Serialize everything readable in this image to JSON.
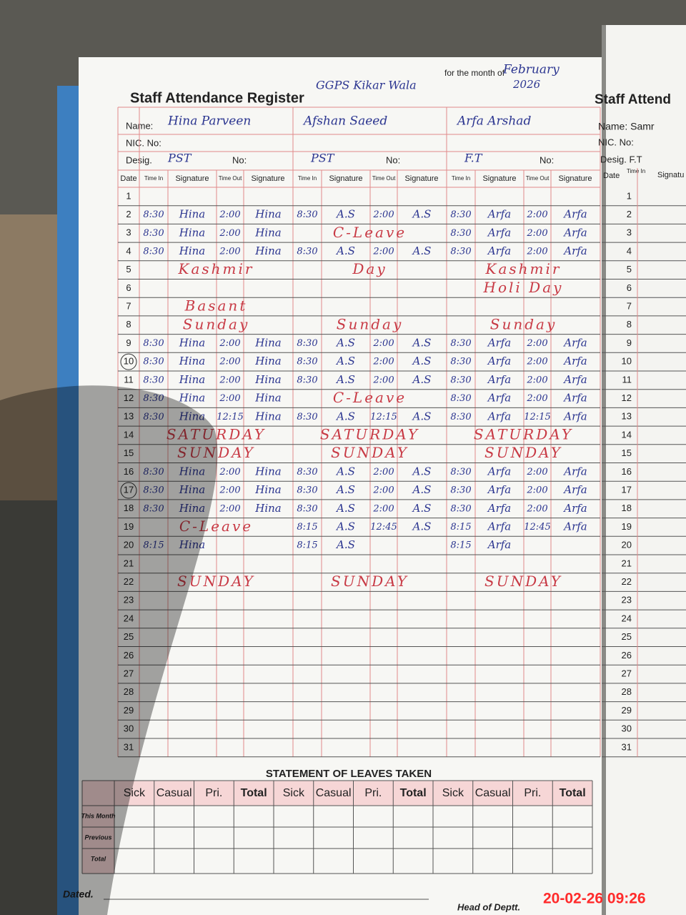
{
  "header": {
    "title": "Staff Attendance Register",
    "school": "GGPS Kikar Wala",
    "month_label": "for the month of",
    "month": "February",
    "year": "2026"
  },
  "labels": {
    "name": "Name:",
    "nic": "NIC. No:",
    "desig": "Desig.",
    "no": "No:",
    "date": "Date",
    "time_in": "Time In",
    "signature": "Signature",
    "time_out": "Time Out"
  },
  "staff": [
    {
      "name": "Hina Parveen",
      "desig": "PST"
    },
    {
      "name": "Afshan Saeed",
      "desig": "PST"
    },
    {
      "name": "Arfa Arshad",
      "desig": "F.T"
    }
  ],
  "rows": [
    {
      "date": "1"
    },
    {
      "date": "2",
      "entries": [
        [
          "8:30",
          "Hina",
          "2:00",
          "Hina"
        ],
        [
          "8:30",
          "A.S",
          "2:00",
          "A.S"
        ],
        [
          "8:30",
          "Arfa",
          "2:00",
          "Arfa"
        ]
      ]
    },
    {
      "date": "3",
      "entries": [
        [
          "8:30",
          "Hina",
          "2:00",
          "Hina"
        ],
        null,
        [
          "8:30",
          "Arfa",
          "2:00",
          "Arfa"
        ]
      ],
      "notes": [
        null,
        "C-Leave",
        null
      ]
    },
    {
      "date": "4",
      "entries": [
        [
          "8:30",
          "Hina",
          "2:00",
          "Hina"
        ],
        [
          "8:30",
          "A.S",
          "2:00",
          "A.S"
        ],
        [
          "8:30",
          "Arfa",
          "2:00",
          "Arfa"
        ]
      ]
    },
    {
      "date": "5",
      "notes": [
        "Kashmir",
        "Day",
        "Kashmir"
      ]
    },
    {
      "date": "6",
      "notes": [
        null,
        null,
        "Holi Day"
      ]
    },
    {
      "date": "7",
      "notes": [
        "Basant",
        null,
        null
      ]
    },
    {
      "date": "8",
      "notes": [
        "Sunday",
        "Sunday",
        "Sunday"
      ]
    },
    {
      "date": "9",
      "entries": [
        [
          "8:30",
          "Hina",
          "2:00",
          "Hina"
        ],
        [
          "8:30",
          "A.S",
          "2:00",
          "A.S"
        ],
        [
          "8:30",
          "Arfa",
          "2:00",
          "Arfa"
        ]
      ]
    },
    {
      "date": "10",
      "circled": true,
      "entries": [
        [
          "8:30",
          "Hina",
          "2:00",
          "Hina"
        ],
        [
          "8:30",
          "A.S",
          "2:00",
          "A.S"
        ],
        [
          "8:30",
          "Arfa",
          "2:00",
          "Arfa"
        ]
      ]
    },
    {
      "date": "11",
      "entries": [
        [
          "8:30",
          "Hina",
          "2:00",
          "Hina"
        ],
        [
          "8:30",
          "A.S",
          "2:00",
          "A.S"
        ],
        [
          "8:30",
          "Arfa",
          "2:00",
          "Arfa"
        ]
      ]
    },
    {
      "date": "12",
      "entries": [
        [
          "8:30",
          "Hina",
          "2:00",
          "Hina"
        ],
        null,
        [
          "8:30",
          "Arfa",
          "2:00",
          "Arfa"
        ]
      ],
      "notes": [
        null,
        "C-Leave",
        null
      ]
    },
    {
      "date": "13",
      "entries": [
        [
          "8:30",
          "Hina",
          "12:15",
          "Hina"
        ],
        [
          "8:30",
          "A.S",
          "12:15",
          "A.S"
        ],
        [
          "8:30",
          "Arfa",
          "12:15",
          "Arfa"
        ]
      ]
    },
    {
      "date": "14",
      "notes": [
        "SATURDAY",
        "SATURDAY",
        "SATURDAY"
      ]
    },
    {
      "date": "15",
      "notes": [
        "SUNDAY",
        "SUNDAY",
        "SUNDAY"
      ]
    },
    {
      "date": "16",
      "entries": [
        [
          "8:30",
          "Hina",
          "2:00",
          "Hina"
        ],
        [
          "8:30",
          "A.S",
          "2:00",
          "A.S"
        ],
        [
          "8:30",
          "Arfa",
          "2:00",
          "Arfa"
        ]
      ]
    },
    {
      "date": "17",
      "circled": true,
      "entries": [
        [
          "8:30",
          "Hina",
          "2:00",
          "Hina"
        ],
        [
          "8:30",
          "A.S",
          "2:00",
          "A.S"
        ],
        [
          "8:30",
          "Arfa",
          "2:00",
          "Arfa"
        ]
      ]
    },
    {
      "date": "18",
      "entries": [
        [
          "8:30",
          "Hina",
          "2:00",
          "Hina"
        ],
        [
          "8:30",
          "A.S",
          "2:00",
          "A.S"
        ],
        [
          "8:30",
          "Arfa",
          "2:00",
          "Arfa"
        ]
      ]
    },
    {
      "date": "19",
      "entries": [
        null,
        [
          "8:15",
          "A.S",
          "12:45",
          "A.S"
        ],
        [
          "8:15",
          "Arfa",
          "12:45",
          "Arfa"
        ]
      ],
      "notes": [
        "C-Leave",
        null,
        null
      ]
    },
    {
      "date": "20",
      "entries": [
        [
          "8:15",
          "Hina"
        ],
        [
          "8:15",
          "A.S"
        ],
        [
          "8:15",
          "Arfa"
        ]
      ]
    },
    {
      "date": "21"
    },
    {
      "date": "22",
      "notes": [
        "SUNDAY",
        "SUNDAY",
        "SUNDAY"
      ]
    },
    {
      "date": "23"
    },
    {
      "date": "24"
    },
    {
      "date": "25"
    },
    {
      "date": "26"
    },
    {
      "date": "27"
    },
    {
      "date": "28"
    },
    {
      "date": "29"
    },
    {
      "date": "30"
    },
    {
      "date": "31"
    }
  ],
  "leaves": {
    "title": "STATEMENT OF LEAVES TAKEN",
    "headers": [
      "Sick",
      "Casual",
      "Pri.",
      "Total"
    ],
    "row_labels": [
      "This Month",
      "Previous",
      "Total"
    ]
  },
  "next_page": {
    "title": "Staff Attend",
    "name": "Name: Samr",
    "nic": "NIC. No:",
    "desig": "Desig. F.T",
    "date": "Date",
    "time_in": "Time In",
    "signature": "Signatu"
  },
  "footer": {
    "dated": "Dated.",
    "head": "Head of Deptt.",
    "timestamp": "20-02-26  09:26"
  }
}
